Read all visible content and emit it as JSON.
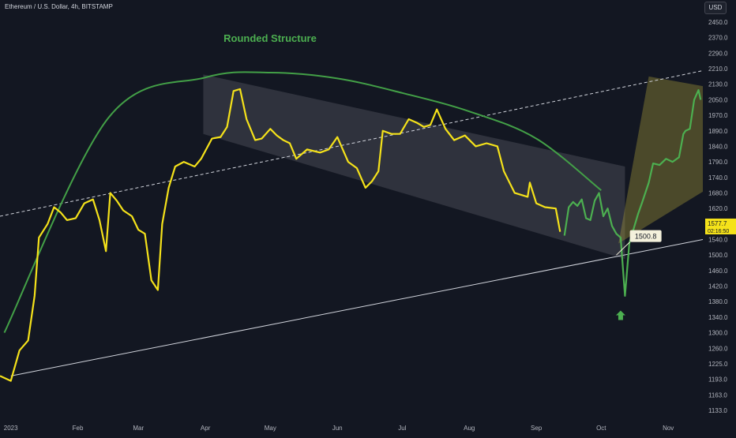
{
  "header": {
    "symbol": "Ethereum / U.S. Dollar, 4h, BITSTAMP",
    "currency_button": "USD"
  },
  "colors": {
    "background": "#131722",
    "price_yellow": "#f5e21a",
    "price_green": "#4caf50",
    "arc_green": "#43a047",
    "label_green": "#4caf50",
    "channel_fill": "#9598a1",
    "target_fill": "#b5a639",
    "axis_text": "#b2b5be",
    "last_price_badge": "#f5e21a"
  },
  "chart_data": {
    "type": "line",
    "title": "",
    "xlabel": "",
    "ylabel": "",
    "x_tick_labels": [
      "2023",
      "Feb",
      "Mar",
      "Apr",
      "May",
      "Jun",
      "Jul",
      "Aug",
      "Sep",
      "Oct",
      "Nov"
    ],
    "x_tick_dates": [
      "2023-01-01",
      "2023-02-01",
      "2023-03-01",
      "2023-04-01",
      "2023-05-01",
      "2023-06-01",
      "2023-07-01",
      "2023-08-01",
      "2023-09-01",
      "2023-10-01",
      "2023-11-01"
    ],
    "xlim": [
      "2022-12-27",
      "2023-11-17"
    ],
    "y_tick_labels": [
      "2450.0",
      "2370.0",
      "2290.0",
      "2210.0",
      "2130.0",
      "2050.0",
      "1970.0",
      "1890.0",
      "1840.0",
      "1790.0",
      "1740.0",
      "1680.0",
      "1620.0",
      "1580.0",
      "1540.0",
      "1500.0",
      "1460.0",
      "1420.0",
      "1380.0",
      "1340.0",
      "1300.0",
      "1260.0",
      "1225.0",
      "1193.0",
      "1163.0",
      "1133.0"
    ],
    "ylim": [
      1133,
      2450
    ],
    "series": [
      {
        "color": "yellow",
        "x": [
          "2022-12-27",
          "2023-01-01",
          "2023-01-05",
          "2023-01-09",
          "2023-01-12",
          "2023-01-14",
          "2023-01-18",
          "2023-01-21",
          "2023-01-24",
          "2023-01-27",
          "2023-01-31",
          "2023-02-04",
          "2023-02-08",
          "2023-02-11",
          "2023-02-14",
          "2023-02-16",
          "2023-02-19",
          "2023-02-22",
          "2023-02-26",
          "2023-03-01",
          "2023-03-04",
          "2023-03-07",
          "2023-03-10",
          "2023-03-12",
          "2023-03-15",
          "2023-03-18",
          "2023-03-22",
          "2023-03-27",
          "2023-03-30",
          "2023-04-04",
          "2023-04-08",
          "2023-04-11",
          "2023-04-14",
          "2023-04-17",
          "2023-04-20",
          "2023-04-24",
          "2023-04-27",
          "2023-05-01",
          "2023-05-04",
          "2023-05-07",
          "2023-05-10",
          "2023-05-13",
          "2023-05-18",
          "2023-05-24",
          "2023-05-28",
          "2023-06-01",
          "2023-06-06",
          "2023-06-10",
          "2023-06-14",
          "2023-06-17",
          "2023-06-20",
          "2023-06-22",
          "2023-06-26",
          "2023-06-30",
          "2023-07-04",
          "2023-07-08",
          "2023-07-11",
          "2023-07-14",
          "2023-07-17",
          "2023-07-21",
          "2023-07-25",
          "2023-07-30",
          "2023-08-04",
          "2023-08-09",
          "2023-08-14",
          "2023-08-17",
          "2023-08-22",
          "2023-08-28",
          "2023-08-29",
          "2023-09-01",
          "2023-09-05",
          "2023-09-10",
          "2023-09-12"
        ],
        "y": [
          1200,
          1190,
          1255,
          1280,
          1395,
          1545,
          1580,
          1625,
          1610,
          1590,
          1595,
          1640,
          1655,
          1590,
          1510,
          1680,
          1650,
          1615,
          1600,
          1565,
          1555,
          1435,
          1410,
          1580,
          1700,
          1775,
          1790,
          1775,
          1800,
          1865,
          1870,
          1910,
          2095,
          2105,
          1950,
          1860,
          1865,
          1900,
          1875,
          1860,
          1850,
          1800,
          1830,
          1820,
          1830,
          1870,
          1790,
          1770,
          1700,
          1725,
          1760,
          1890,
          1880,
          1880,
          1950,
          1930,
          1910,
          1920,
          2000,
          1900,
          1860,
          1875,
          1840,
          1850,
          1840,
          1760,
          1680,
          1665,
          1720,
          1640,
          1625,
          1620,
          1560
        ]
      },
      {
        "color": "green",
        "x": [
          "2023-09-14",
          "2023-09-16",
          "2023-09-18",
          "2023-09-20",
          "2023-09-22",
          "2023-09-24",
          "2023-09-26",
          "2023-09-28",
          "2023-09-30",
          "2023-10-02",
          "2023-10-04",
          "2023-10-06",
          "2023-10-08",
          "2023-10-10",
          "2023-10-12",
          "2023-10-14",
          "2023-10-18",
          "2023-10-20",
          "2023-10-23",
          "2023-10-25",
          "2023-10-28",
          "2023-10-31",
          "2023-11-03",
          "2023-11-06",
          "2023-11-08",
          "2023-11-09",
          "2023-11-11",
          "2023-11-13",
          "2023-11-15",
          "2023-11-16"
        ],
        "y": [
          1550,
          1625,
          1645,
          1630,
          1655,
          1595,
          1590,
          1650,
          1680,
          1600,
          1620,
          1575,
          1555,
          1545,
          1395,
          1530,
          1605,
          1645,
          1720,
          1785,
          1780,
          1800,
          1790,
          1805,
          1880,
          1890,
          1900,
          2050,
          2100,
          2050
        ]
      }
    ],
    "annotations": {
      "arc_label": "Rounded Structure",
      "price_label": "1500.8",
      "last_price": "1577.7",
      "countdown": "02:16:50"
    },
    "arc": {
      "x": [
        "2022-12-29",
        "2023-02-15",
        "2023-04-01",
        "2023-05-01",
        "2023-06-01",
        "2023-07-01",
        "2023-08-01",
        "2023-09-01",
        "2023-10-01"
      ],
      "y": [
        1300,
        1955,
        2165,
        2190,
        2160,
        2085,
        1990,
        1865,
        1690
      ]
    },
    "trendlines": {
      "support_solid": {
        "x": [
          "2023-01-01",
          "2023-11-17"
        ],
        "y": [
          1200,
          1540
        ]
      },
      "resistance_dashed": {
        "x": [
          "2022-12-27",
          "2023-11-17"
        ],
        "y": [
          1600,
          2200
        ]
      }
    },
    "zones": {
      "channel": {
        "x": [
          "2023-03-31",
          "2023-03-31",
          "2023-10-12",
          "2023-10-12"
        ],
        "y": [
          2180,
          1880,
          1490,
          1775
        ]
      },
      "target": {
        "x": [
          "2023-10-09",
          "2023-10-23",
          "2023-11-17",
          "2023-11-17"
        ],
        "y": [
          1530,
          2170,
          2120,
          1685
        ]
      }
    },
    "grid": false,
    "legend": "none"
  }
}
